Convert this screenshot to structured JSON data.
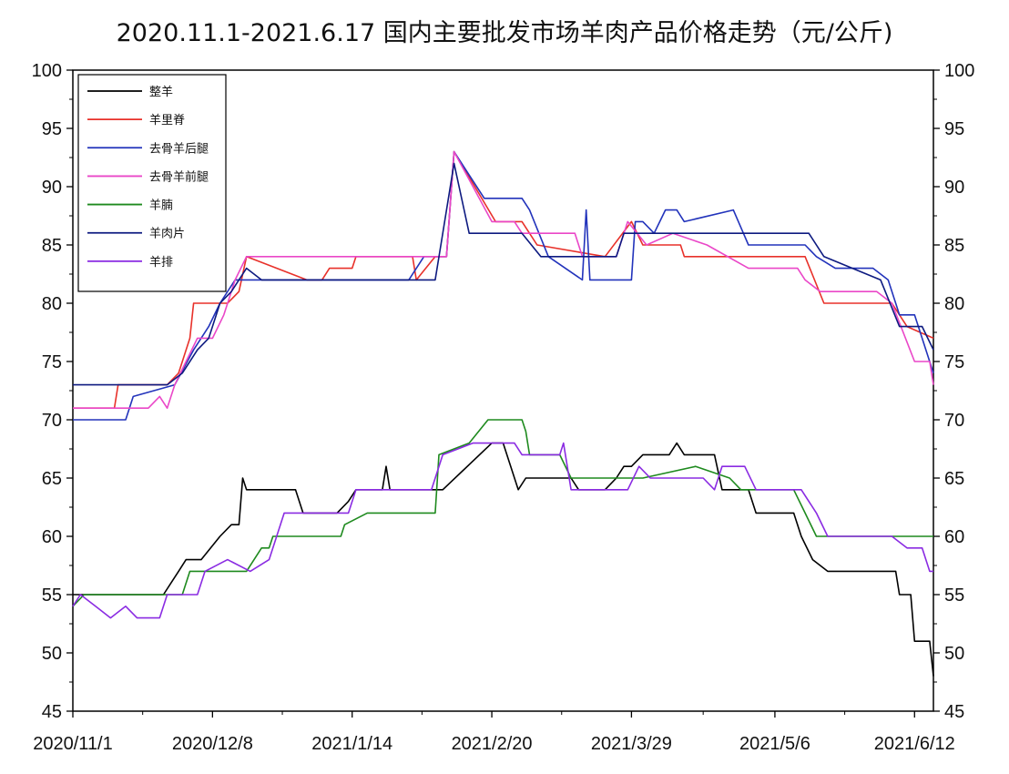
{
  "chart_data": {
    "type": "line",
    "title": "2020.11.1-2021.6.17 国内主要批发市场羊肉产品价格走势（元/公斤)",
    "xlabel": "",
    "ylabel": "",
    "ylim": [
      45,
      100
    ],
    "yticks": [
      45,
      50,
      55,
      60,
      65,
      70,
      75,
      80,
      85,
      90,
      95,
      100
    ],
    "xlim": [
      "2020-11-01",
      "2021-06-17"
    ],
    "xtick_labels": [
      "2020/11/1",
      "2020/12/8",
      "2021/1/14",
      "2021/2/20",
      "2021/3/29",
      "2021/5/6",
      "2021/6/12"
    ],
    "xtick_dates": [
      "2020-11-01",
      "2020-12-08",
      "2021-01-14",
      "2021-02-20",
      "2021-03-29",
      "2021-05-06",
      "2021-06-12"
    ],
    "grid": false,
    "legend_position": "top-left",
    "series": [
      {
        "name": "整羊",
        "color": "#000000",
        "points": [
          [
            "2020-11-01",
            55
          ],
          [
            "2020-11-25",
            55
          ],
          [
            "2020-11-29",
            57
          ],
          [
            "2020-12-01",
            58
          ],
          [
            "2020-12-05",
            58
          ],
          [
            "2020-12-10",
            60
          ],
          [
            "2020-12-13",
            61
          ],
          [
            "2020-12-15",
            61
          ],
          [
            "2020-12-16",
            65
          ],
          [
            "2020-12-17",
            64
          ],
          [
            "2020-12-30",
            64
          ],
          [
            "2021-01-01",
            62
          ],
          [
            "2021-01-10",
            62
          ],
          [
            "2021-01-13",
            63
          ],
          [
            "2021-01-15",
            64
          ],
          [
            "2021-01-22",
            64
          ],
          [
            "2021-01-23",
            66
          ],
          [
            "2021-01-24",
            64
          ],
          [
            "2021-02-07",
            64
          ],
          [
            "2021-02-20",
            68
          ],
          [
            "2021-02-23",
            68
          ],
          [
            "2021-02-27",
            64
          ],
          [
            "2021-03-01",
            65
          ],
          [
            "2021-03-13",
            65
          ],
          [
            "2021-03-15",
            64
          ],
          [
            "2021-03-22",
            64
          ],
          [
            "2021-03-25",
            65
          ],
          [
            "2021-03-27",
            66
          ],
          [
            "2021-03-29",
            66
          ],
          [
            "2021-04-01",
            67
          ],
          [
            "2021-04-08",
            67
          ],
          [
            "2021-04-10",
            68
          ],
          [
            "2021-04-12",
            67
          ],
          [
            "2021-04-20",
            67
          ],
          [
            "2021-04-22",
            64
          ],
          [
            "2021-04-29",
            64
          ],
          [
            "2021-05-01",
            62
          ],
          [
            "2021-05-11",
            62
          ],
          [
            "2021-05-13",
            60
          ],
          [
            "2021-05-16",
            58
          ],
          [
            "2021-05-20",
            57
          ],
          [
            "2021-06-07",
            57
          ],
          [
            "2021-06-08",
            55
          ],
          [
            "2021-06-11",
            55
          ],
          [
            "2021-06-12",
            51
          ],
          [
            "2021-06-16",
            51
          ],
          [
            "2021-06-17",
            48
          ]
        ]
      },
      {
        "name": "羊里脊",
        "color": "#e8312a",
        "points": [
          [
            "2020-11-01",
            71
          ],
          [
            "2020-11-12",
            71
          ],
          [
            "2020-11-13",
            73
          ],
          [
            "2020-11-26",
            73
          ],
          [
            "2020-11-29",
            74
          ],
          [
            "2020-12-02",
            77
          ],
          [
            "2020-12-03",
            80
          ],
          [
            "2020-12-12",
            80
          ],
          [
            "2020-12-15",
            81
          ],
          [
            "2020-12-17",
            84
          ],
          [
            "2021-01-02",
            82
          ],
          [
            "2021-01-06",
            82
          ],
          [
            "2021-01-08",
            83
          ],
          [
            "2021-01-14",
            83
          ],
          [
            "2021-01-15",
            84
          ],
          [
            "2021-01-30",
            84
          ],
          [
            "2021-01-31",
            82
          ],
          [
            "2021-02-05",
            84
          ],
          [
            "2021-02-08",
            84
          ],
          [
            "2021-02-10",
            93
          ],
          [
            "2021-02-21",
            87
          ],
          [
            "2021-02-28",
            87
          ],
          [
            "2021-03-04",
            85
          ],
          [
            "2021-03-22",
            84
          ],
          [
            "2021-03-29",
            87
          ],
          [
            "2021-04-01",
            85
          ],
          [
            "2021-04-11",
            85
          ],
          [
            "2021-04-12",
            84
          ],
          [
            "2021-05-14",
            84
          ],
          [
            "2021-05-19",
            80
          ],
          [
            "2021-06-06",
            80
          ],
          [
            "2021-06-10",
            78
          ],
          [
            "2021-06-17",
            77
          ]
        ]
      },
      {
        "name": "去骨羊后腿",
        "color": "#2233bb",
        "points": [
          [
            "2020-11-01",
            70
          ],
          [
            "2020-11-15",
            70
          ],
          [
            "2020-11-17",
            72
          ],
          [
            "2020-11-28",
            73
          ],
          [
            "2020-12-03",
            76
          ],
          [
            "2020-12-07",
            78
          ],
          [
            "2020-12-10",
            80
          ],
          [
            "2020-12-14",
            82
          ],
          [
            "2020-12-20",
            82
          ],
          [
            "2020-12-23",
            82
          ],
          [
            "2021-01-29",
            82
          ],
          [
            "2021-02-02",
            84
          ],
          [
            "2021-02-08",
            84
          ],
          [
            "2021-02-10",
            93
          ],
          [
            "2021-02-18",
            89
          ],
          [
            "2021-02-28",
            89
          ],
          [
            "2021-03-02",
            88
          ],
          [
            "2021-03-07",
            84
          ],
          [
            "2021-03-16",
            82
          ],
          [
            "2021-03-17",
            88
          ],
          [
            "2021-03-18",
            82
          ],
          [
            "2021-03-29",
            82
          ],
          [
            "2021-03-30",
            87
          ],
          [
            "2021-04-01",
            87
          ],
          [
            "2021-04-04",
            86
          ],
          [
            "2021-04-07",
            88
          ],
          [
            "2021-04-10",
            88
          ],
          [
            "2021-04-12",
            87
          ],
          [
            "2021-04-25",
            88
          ],
          [
            "2021-04-29",
            85
          ],
          [
            "2021-05-14",
            85
          ],
          [
            "2021-05-17",
            84
          ],
          [
            "2021-05-22",
            83
          ],
          [
            "2021-06-01",
            83
          ],
          [
            "2021-06-05",
            82
          ],
          [
            "2021-06-08",
            79
          ],
          [
            "2021-06-12",
            79
          ],
          [
            "2021-06-14",
            77
          ],
          [
            "2021-06-17",
            74
          ]
        ]
      },
      {
        "name": "去骨羊前腿",
        "color": "#ea47c8",
        "points": [
          [
            "2020-11-01",
            71
          ],
          [
            "2020-11-21",
            71
          ],
          [
            "2020-11-24",
            72
          ],
          [
            "2020-11-26",
            71
          ],
          [
            "2020-11-28",
            73
          ],
          [
            "2020-12-01",
            75
          ],
          [
            "2020-12-04",
            77
          ],
          [
            "2020-12-08",
            77
          ],
          [
            "2020-12-11",
            79
          ],
          [
            "2020-12-14",
            82
          ],
          [
            "2020-12-17",
            84
          ],
          [
            "2021-01-30",
            84
          ],
          [
            "2021-02-02",
            84
          ],
          [
            "2021-02-08",
            84
          ],
          [
            "2021-02-10",
            93
          ],
          [
            "2021-02-20",
            87
          ],
          [
            "2021-02-26",
            87
          ],
          [
            "2021-02-28",
            86
          ],
          [
            "2021-03-14",
            86
          ],
          [
            "2021-03-16",
            84
          ],
          [
            "2021-03-25",
            84
          ],
          [
            "2021-03-28",
            87
          ],
          [
            "2021-04-02",
            85
          ],
          [
            "2021-04-09",
            86
          ],
          [
            "2021-04-18",
            85
          ],
          [
            "2021-04-29",
            83
          ],
          [
            "2021-05-12",
            83
          ],
          [
            "2021-05-14",
            82
          ],
          [
            "2021-05-18",
            81
          ],
          [
            "2021-06-02",
            81
          ],
          [
            "2021-06-06",
            80
          ],
          [
            "2021-06-12",
            75
          ],
          [
            "2021-06-16",
            75
          ],
          [
            "2021-06-17",
            73
          ]
        ]
      },
      {
        "name": "羊腩",
        "color": "#1e8a1e",
        "points": [
          [
            "2020-11-01",
            54
          ],
          [
            "2020-11-04",
            55
          ],
          [
            "2020-11-30",
            55
          ],
          [
            "2020-12-02",
            57
          ],
          [
            "2020-12-14",
            57
          ],
          [
            "2020-12-17",
            57
          ],
          [
            "2020-12-21",
            59
          ],
          [
            "2020-12-23",
            59
          ],
          [
            "2020-12-24",
            60
          ],
          [
            "2021-01-06",
            60
          ],
          [
            "2021-01-11",
            60
          ],
          [
            "2021-01-12",
            61
          ],
          [
            "2021-01-18",
            62
          ],
          [
            "2021-02-05",
            62
          ],
          [
            "2021-02-06",
            67
          ],
          [
            "2021-02-14",
            68
          ],
          [
            "2021-02-19",
            70
          ],
          [
            "2021-02-24",
            70
          ],
          [
            "2021-02-28",
            70
          ],
          [
            "2021-03-01",
            69
          ],
          [
            "2021-03-02",
            67
          ],
          [
            "2021-03-10",
            67
          ],
          [
            "2021-03-13",
            65
          ],
          [
            "2021-03-29",
            65
          ],
          [
            "2021-04-01",
            65
          ],
          [
            "2021-04-15",
            66
          ],
          [
            "2021-04-24",
            65
          ],
          [
            "2021-04-27",
            64
          ],
          [
            "2021-05-11",
            64
          ],
          [
            "2021-05-14",
            62
          ],
          [
            "2021-05-17",
            60
          ],
          [
            "2021-06-17",
            60
          ]
        ]
      },
      {
        "name": "羊肉片",
        "color": "#0d1a80",
        "points": [
          [
            "2020-11-01",
            73
          ],
          [
            "2020-11-26",
            73
          ],
          [
            "2020-11-30",
            74
          ],
          [
            "2020-12-04",
            76
          ],
          [
            "2020-12-07",
            77
          ],
          [
            "2020-12-10",
            80
          ],
          [
            "2020-12-13",
            81
          ],
          [
            "2020-12-17",
            83
          ],
          [
            "2020-12-21",
            82
          ],
          [
            "2021-02-05",
            82
          ],
          [
            "2021-02-07",
            86
          ],
          [
            "2021-02-10",
            92
          ],
          [
            "2021-02-14",
            86
          ],
          [
            "2021-02-22",
            86
          ],
          [
            "2021-02-28",
            86
          ],
          [
            "2021-03-05",
            84
          ],
          [
            "2021-03-20",
            84
          ],
          [
            "2021-03-25",
            84
          ],
          [
            "2021-03-27",
            86
          ],
          [
            "2021-04-09",
            86
          ],
          [
            "2021-04-12",
            86
          ],
          [
            "2021-04-20",
            86
          ],
          [
            "2021-04-28",
            86
          ],
          [
            "2021-05-08",
            86
          ],
          [
            "2021-05-15",
            86
          ],
          [
            "2021-05-19",
            84
          ],
          [
            "2021-06-03",
            82
          ],
          [
            "2021-06-08",
            78
          ],
          [
            "2021-06-14",
            78
          ],
          [
            "2021-06-17",
            76
          ]
        ]
      },
      {
        "name": "羊排",
        "color": "#8a2be2",
        "points": [
          [
            "2020-11-01",
            54
          ],
          [
            "2020-11-03",
            55
          ],
          [
            "2020-11-07",
            54
          ],
          [
            "2020-11-11",
            53
          ],
          [
            "2020-11-15",
            54
          ],
          [
            "2020-11-18",
            53
          ],
          [
            "2020-11-24",
            53
          ],
          [
            "2020-11-26",
            55
          ],
          [
            "2020-12-04",
            55
          ],
          [
            "2020-12-06",
            57
          ],
          [
            "2020-12-12",
            58
          ],
          [
            "2020-12-18",
            57
          ],
          [
            "2020-12-23",
            58
          ],
          [
            "2020-12-27",
            62
          ],
          [
            "2021-01-13",
            62
          ],
          [
            "2021-01-15",
            64
          ],
          [
            "2021-02-02",
            64
          ],
          [
            "2021-02-04",
            64
          ],
          [
            "2021-02-07",
            67
          ],
          [
            "2021-02-15",
            68
          ],
          [
            "2021-02-26",
            68
          ],
          [
            "2021-02-28",
            67
          ],
          [
            "2021-03-10",
            67
          ],
          [
            "2021-03-11",
            68
          ],
          [
            "2021-03-13",
            64
          ],
          [
            "2021-03-28",
            64
          ],
          [
            "2021-03-31",
            66
          ],
          [
            "2021-04-03",
            65
          ],
          [
            "2021-04-12",
            65
          ],
          [
            "2021-04-17",
            65
          ],
          [
            "2021-04-20",
            64
          ],
          [
            "2021-04-22",
            66
          ],
          [
            "2021-04-28",
            66
          ],
          [
            "2021-05-01",
            64
          ],
          [
            "2021-05-13",
            64
          ],
          [
            "2021-05-17",
            62
          ],
          [
            "2021-05-20",
            60
          ],
          [
            "2021-06-06",
            60
          ],
          [
            "2021-06-10",
            59
          ],
          [
            "2021-06-14",
            59
          ],
          [
            "2021-06-16",
            57
          ],
          [
            "2021-06-17",
            57
          ]
        ]
      }
    ]
  }
}
